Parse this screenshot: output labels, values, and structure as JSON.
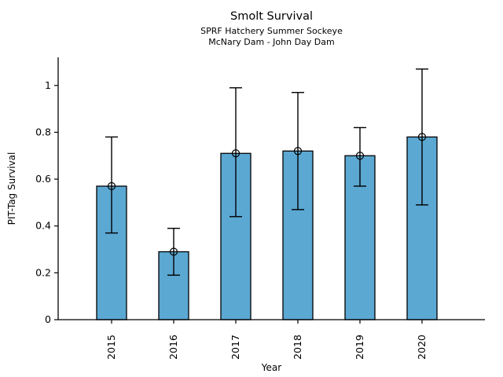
{
  "chart_data": {
    "type": "bar",
    "title": "Smolt Survival",
    "subtitle_line1": "SPRF Hatchery Summer Sockeye",
    "subtitle_line2": "McNary Dam - John Day Dam",
    "xlabel": "Year",
    "ylabel": "PIT-Tag Survival",
    "categories": [
      "2015",
      "2016",
      "2017",
      "2018",
      "2019",
      "2020"
    ],
    "series": [
      {
        "name": "PIT-Tag Survival",
        "values": [
          0.57,
          0.29,
          0.71,
          0.72,
          0.7,
          0.78
        ],
        "error_low": [
          0.37,
          0.19,
          0.44,
          0.47,
          0.57,
          0.49
        ],
        "error_high": [
          0.78,
          0.39,
          0.99,
          0.97,
          0.82,
          1.07
        ]
      }
    ],
    "yticks": [
      0,
      0.2,
      0.4,
      0.6,
      0.8,
      1
    ],
    "ytick_labels": [
      "0",
      "0.2",
      "0.4",
      "0.6",
      "0.8",
      "1"
    ],
    "ylim": [
      0,
      1.12
    ],
    "xtick_rotation": 90,
    "grid": false,
    "legend_position": null,
    "marker": "open-circle",
    "colors": {
      "bar_fill": "#5BA8D3",
      "bar_edge": "#000000",
      "error_bar": "#000000",
      "axis": "#000000",
      "text": "#000000",
      "background": "#ffffff"
    }
  }
}
